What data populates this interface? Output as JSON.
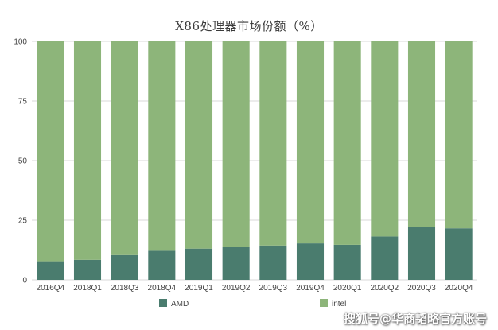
{
  "chart_data": {
    "type": "bar",
    "stacked": true,
    "title": "X86处理器市场份额（%）",
    "categories": [
      "2016Q4",
      "2018Q1",
      "2018Q3",
      "2018Q4",
      "2019Q1",
      "2019Q2",
      "2019Q3",
      "2019Q4",
      "2020Q1",
      "2020Q2",
      "2020Q3",
      "2020Q4"
    ],
    "series": [
      {
        "name": "AMD",
        "color": "#4a7c6e",
        "values": [
          7.8,
          8.4,
          10.4,
          12.2,
          13.1,
          13.8,
          14.4,
          15.3,
          14.7,
          18.2,
          22.2,
          21.6
        ]
      },
      {
        "name": "intel",
        "color": "#8db57a",
        "values": [
          92.2,
          91.6,
          89.6,
          87.8,
          86.9,
          86.2,
          85.6,
          84.7,
          85.3,
          81.8,
          77.8,
          78.4
        ]
      }
    ],
    "ylim": [
      0,
      100
    ],
    "yticks": [
      "0",
      "25",
      "50",
      "75",
      "100"
    ],
    "grid": true,
    "legend_position": "bottom"
  },
  "watermark": "搜狐号@华商韬略官方账号"
}
